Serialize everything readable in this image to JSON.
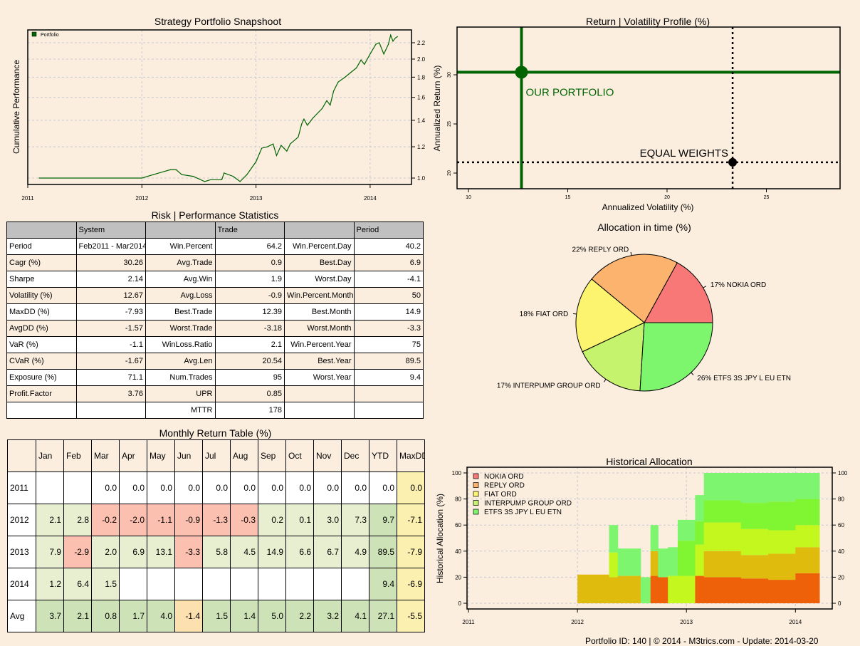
{
  "titles": {
    "snapshot": "Strategy Portfolio Snapshoot",
    "stats": "Risk | Performance Statistics",
    "monthly": "Monthly Return Table (%)"
  },
  "chart_data": [
    {
      "type": "line",
      "title": "Strategy Portfolio Snapshoot",
      "ylabel": "Cumulative Performance",
      "xlabel": "",
      "y_scale": "log",
      "grid": true,
      "legend_placement": "top-left",
      "xticks": [
        "2011",
        "2012",
        "2013",
        "2014"
      ],
      "yticks": [
        1.0,
        1.2,
        1.4,
        1.6,
        1.8,
        2.0,
        2.2
      ],
      "ylim": [
        0.95,
        2.32
      ],
      "series": [
        {
          "name": "Portfolio",
          "color": "#006400",
          "x": [
            2011.1,
            2012.0,
            2012.1,
            2012.2,
            2012.25,
            2012.3,
            2012.35,
            2012.45,
            2012.55,
            2012.6,
            2012.7,
            2012.72,
            2012.8,
            2012.86,
            2012.92,
            2013.0,
            2013.05,
            2013.1,
            2013.15,
            2013.18,
            2013.22,
            2013.27,
            2013.3,
            2013.37,
            2013.4,
            2013.42,
            2013.45,
            2013.5,
            2013.58,
            2013.62,
            2013.65,
            2013.68,
            2013.72,
            2013.78,
            2013.83,
            2013.88,
            2013.92,
            2013.95,
            2014.0,
            2014.05,
            2014.08,
            2014.12,
            2014.16,
            2014.18,
            2014.2,
            2014.22,
            2014.24
          ],
          "y": [
            1.0,
            1.0,
            1.02,
            1.04,
            1.05,
            1.05,
            1.02,
            1.01,
            0.98,
            0.99,
            0.99,
            1.03,
            1.01,
            0.98,
            1.02,
            1.1,
            1.19,
            1.2,
            1.22,
            1.14,
            1.21,
            1.17,
            1.22,
            1.27,
            1.37,
            1.41,
            1.36,
            1.42,
            1.5,
            1.57,
            1.53,
            1.66,
            1.75,
            1.8,
            1.85,
            1.9,
            1.99,
            1.94,
            2.06,
            2.18,
            2.2,
            2.06,
            2.18,
            2.3,
            2.22,
            2.26,
            2.28
          ]
        }
      ]
    },
    {
      "type": "scatter",
      "title": "Return | Volatility Profile (%)",
      "xlabel": "Annualized Volatility (%)",
      "ylabel": "Annualized Return (%)",
      "xticks": [
        10,
        15,
        20,
        25
      ],
      "yticks": [
        20,
        25,
        30
      ],
      "xlim": [
        9.4,
        28.7
      ],
      "ylim": [
        18.5,
        34.0
      ],
      "points": [
        {
          "label": "OUR PORTFOLIO",
          "x": 12.67,
          "y": 30.26,
          "color": "#006400",
          "line_style": "solid"
        },
        {
          "label": "EQUAL WEIGHTS",
          "x": 23.3,
          "y": 21.1,
          "color": "#000000",
          "line_style": "dotted"
        }
      ]
    },
    {
      "type": "pie",
      "title": "Allocation in time (%)",
      "slices": [
        {
          "label": "17% NOKIA ORD",
          "value": 17,
          "color": "#F87878"
        },
        {
          "label": "22% REPLY ORD",
          "value": 22,
          "color": "#FCB36E"
        },
        {
          "label": "18% FIAT ORD",
          "value": 18,
          "color": "#FCF46E"
        },
        {
          "label": "17% INTERPUMP GROUP ORD",
          "value": 17,
          "color": "#C6F36E"
        },
        {
          "label": "26% ETFS 3S JPY L EU ETN",
          "value": 26,
          "color": "#7DF56C"
        }
      ]
    },
    {
      "type": "area",
      "title": "Historical Allocation",
      "ylabel": "Historical Allocation (%)",
      "xticks": [
        "2011",
        "2012",
        "2013",
        "2014"
      ],
      "yticks": [
        0,
        20,
        40,
        60,
        80,
        100
      ],
      "ylim": [
        0,
        100
      ],
      "grid": true,
      "legend_placement": "top-left",
      "series": [
        {
          "name": "NOKIA ORD",
          "legend_color": "#F87878",
          "color": "#EE6108"
        },
        {
          "name": "REPLY ORD",
          "legend_color": "#FCB36E",
          "color": "#DFBB0E"
        },
        {
          "name": "FIAT ORD",
          "legend_color": "#FCF46E",
          "color": "#C3F71E"
        },
        {
          "name": "INTERPUMP GROUP ORD",
          "legend_color": "#C6F36E",
          "color": "#80F532"
        },
        {
          "name": "ETFS 3S JPY L EU ETN",
          "legend_color": "#7DF56C",
          "color": "#7EF56E"
        }
      ],
      "intervals": [
        {
          "from": 2012.0,
          "to": 2012.29,
          "values": [
            0,
            22,
            0,
            0,
            0
          ]
        },
        {
          "from": 2012.29,
          "to": 2012.37,
          "values": [
            0,
            20,
            19,
            0,
            21
          ]
        },
        {
          "from": 2012.37,
          "to": 2012.58,
          "values": [
            0,
            21,
            0,
            0,
            21
          ]
        },
        {
          "from": 2012.58,
          "to": 2012.67,
          "values": [
            0,
            0,
            0,
            0,
            20
          ]
        },
        {
          "from": 2012.67,
          "to": 2012.74,
          "values": [
            21,
            19,
            0,
            0,
            20
          ]
        },
        {
          "from": 2012.74,
          "to": 2012.83,
          "values": [
            20,
            0,
            0,
            0,
            22
          ]
        },
        {
          "from": 2012.83,
          "to": 2012.92,
          "values": [
            0,
            0,
            21,
            0,
            22
          ]
        },
        {
          "from": 2012.92,
          "to": 2013.08,
          "values": [
            0,
            0,
            21,
            27,
            16
          ]
        },
        {
          "from": 2013.08,
          "to": 2013.16,
          "values": [
            21,
            0,
            24,
            18,
            20
          ]
        },
        {
          "from": 2013.16,
          "to": 2013.5,
          "values": [
            20,
            20,
            22,
            17,
            21
          ]
        },
        {
          "from": 2013.5,
          "to": 2013.75,
          "values": [
            19,
            18,
            20,
            20,
            23
          ]
        },
        {
          "from": 2013.75,
          "to": 2014.0,
          "values": [
            18,
            20,
            18,
            22,
            22
          ]
        },
        {
          "from": 2014.0,
          "to": 2014.22,
          "values": [
            23,
            20,
            17,
            20,
            20
          ]
        }
      ]
    }
  ],
  "stats": {
    "header": [
      "",
      "System",
      "",
      "Trade",
      "",
      "Period"
    ],
    "rows": [
      [
        "Period",
        "Feb2011 - Mar2014",
        "Win.Percent",
        "64.2",
        "Win.Percent.Day",
        "40.2"
      ],
      [
        "Cagr (%)",
        "30.26",
        "Avg.Trade",
        "0.9",
        "Best.Day",
        "6.9"
      ],
      [
        "Sharpe",
        "2.14",
        "Avg.Win",
        "1.9",
        "Worst.Day",
        "-4.1"
      ],
      [
        "Volatility (%)",
        "12.67",
        "Avg.Loss",
        "-0.9",
        "Win.Percent.Month",
        "50"
      ],
      [
        "MaxDD (%)",
        "-7.93",
        "Best.Trade",
        "12.39",
        "Best.Month",
        "14.9"
      ],
      [
        "AvgDD (%)",
        "-1.57",
        "Worst.Trade",
        "-3.18",
        "Worst.Month",
        "-3.3"
      ],
      [
        "VaR (%)",
        "-1.1",
        "WinLoss.Ratio",
        "2.1",
        "Win.Percent.Year",
        "75"
      ],
      [
        "CVaR (%)",
        "-1.67",
        "Avg.Len",
        "20.54",
        "Best.Year",
        "89.5"
      ],
      [
        "Exposure (%)",
        "71.1",
        "Num.Trades",
        "95",
        "Worst.Year",
        "9.4"
      ],
      [
        "Profit.Factor",
        "3.76",
        "UPR",
        "0.85",
        "",
        ""
      ],
      [
        "",
        "",
        "MTTR",
        "178",
        "",
        ""
      ]
    ]
  },
  "monthly": {
    "header": [
      "",
      "Jan",
      "Feb",
      "Mar",
      "Apr",
      "May",
      "Jun",
      "Jul",
      "Aug",
      "Sep",
      "Oct",
      "Nov",
      "Dec",
      "YTD",
      "MaxDD ("
    ],
    "rows": [
      [
        "2011",
        "",
        "",
        "0.0",
        "0.0",
        "0.0",
        "0.0",
        "0.0",
        "0.0",
        "0.0",
        "0.0",
        "0.0",
        "0.0",
        "0.0",
        "0.0"
      ],
      [
        "2012",
        "2.1",
        "2.8",
        "-0.2",
        "-2.0",
        "-1.1",
        "-0.9",
        "-1.3",
        "-0.3",
        "0.2",
        "0.1",
        "3.0",
        "7.3",
        "9.7",
        "-7.1"
      ],
      [
        "2013",
        "7.9",
        "-2.9",
        "2.0",
        "6.9",
        "13.1",
        "-3.3",
        "5.8",
        "4.5",
        "14.9",
        "6.6",
        "6.7",
        "4.9",
        "89.5",
        "-7.9"
      ],
      [
        "2014",
        "1.2",
        "6.4",
        "1.5",
        "",
        "",
        "",
        "",
        "",
        "",
        "",
        "",
        "",
        "9.4",
        "-6.9"
      ],
      [
        "Avg",
        "3.7",
        "2.1",
        "0.8",
        "1.7",
        "4.0",
        "-1.4",
        "1.5",
        "1.4",
        "5.0",
        "2.2",
        "3.2",
        "4.1",
        "27.1",
        "-5.5"
      ]
    ],
    "colors": {
      "positive": "#E8EFD0",
      "negative": "#FCC0B0",
      "ytd": "#CDE2B6",
      "maxdd": "#FCF0B0",
      "avg_positive": "#CDE2B6",
      "avg_negative": "#FDE0B0",
      "blank": "#FFFFFF"
    }
  },
  "footer": "Portfolio ID:  140  |  © 2014 - M3trics.com  - Update:  2014-03-20"
}
